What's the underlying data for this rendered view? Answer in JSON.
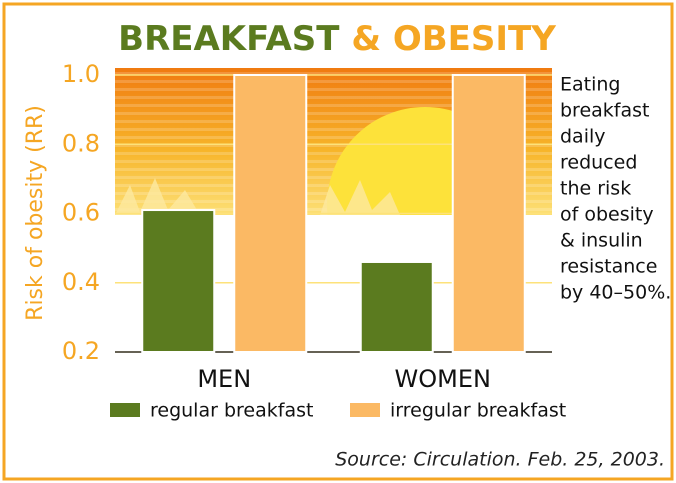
{
  "chart_data": {
    "type": "bar",
    "title": [
      "BREAKFAST",
      "& OBESITY"
    ],
    "y_label": "Risk of obesity (RR)",
    "categories": [
      "MEN",
      "WOMEN"
    ],
    "series": [
      {
        "name": "regular breakfast",
        "color": "#5b7b1f",
        "values": [
          0.61,
          0.46
        ]
      },
      {
        "name": "irregular breakfast",
        "color": "#fbb964",
        "values": [
          1,
          1
        ]
      }
    ],
    "ylim": [
      0.2,
      1
    ],
    "yticks": [
      0.2,
      0.4,
      0.6,
      0.8,
      {
        "value": 1,
        "label": "1.0"
      }
    ],
    "grid": true,
    "annotation": [
      "Eating",
      "breakfast",
      "daily",
      "reduced",
      "the risk",
      "of obesity",
      "& insulin",
      "resistance",
      "by 40–50%."
    ],
    "source": "Source: Circulation. Feb. 25, 2003."
  }
}
